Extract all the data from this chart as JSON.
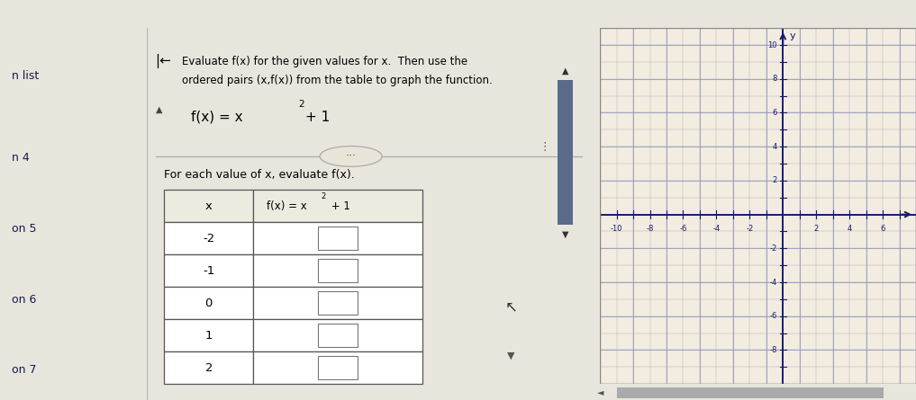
{
  "bg_color_page": "#e8e6dc",
  "bg_color_main": "#edeae0",
  "bg_color_graph": "#f2ede0",
  "dark_red": "#7d1520",
  "scrollbar_color": "#5a6a8a",
  "axis_color": "#1a1a6e",
  "grid_color": "#9999bb",
  "tick_label_color": "#1a1a6e",
  "title_text_line1": "Evaluate f(x) for the given values for x.  Then use the",
  "title_text_line2": "ordered pairs (x,f(x)) from the table to graph the function.",
  "subtitle_text": "For each value of x, evaluate f(x).",
  "table_x_values": [
    "-2",
    "-1",
    "0",
    "1",
    "2"
  ],
  "graph_xlim": [
    -11,
    8
  ],
  "graph_ylim": [
    -10,
    11
  ],
  "graph_xlabel_shown": [
    -10,
    -8,
    -6,
    -4,
    -2,
    2,
    4,
    6
  ],
  "graph_ylabel_shown": [
    -8,
    -6,
    -4,
    -2,
    2,
    4,
    6,
    8,
    10
  ]
}
